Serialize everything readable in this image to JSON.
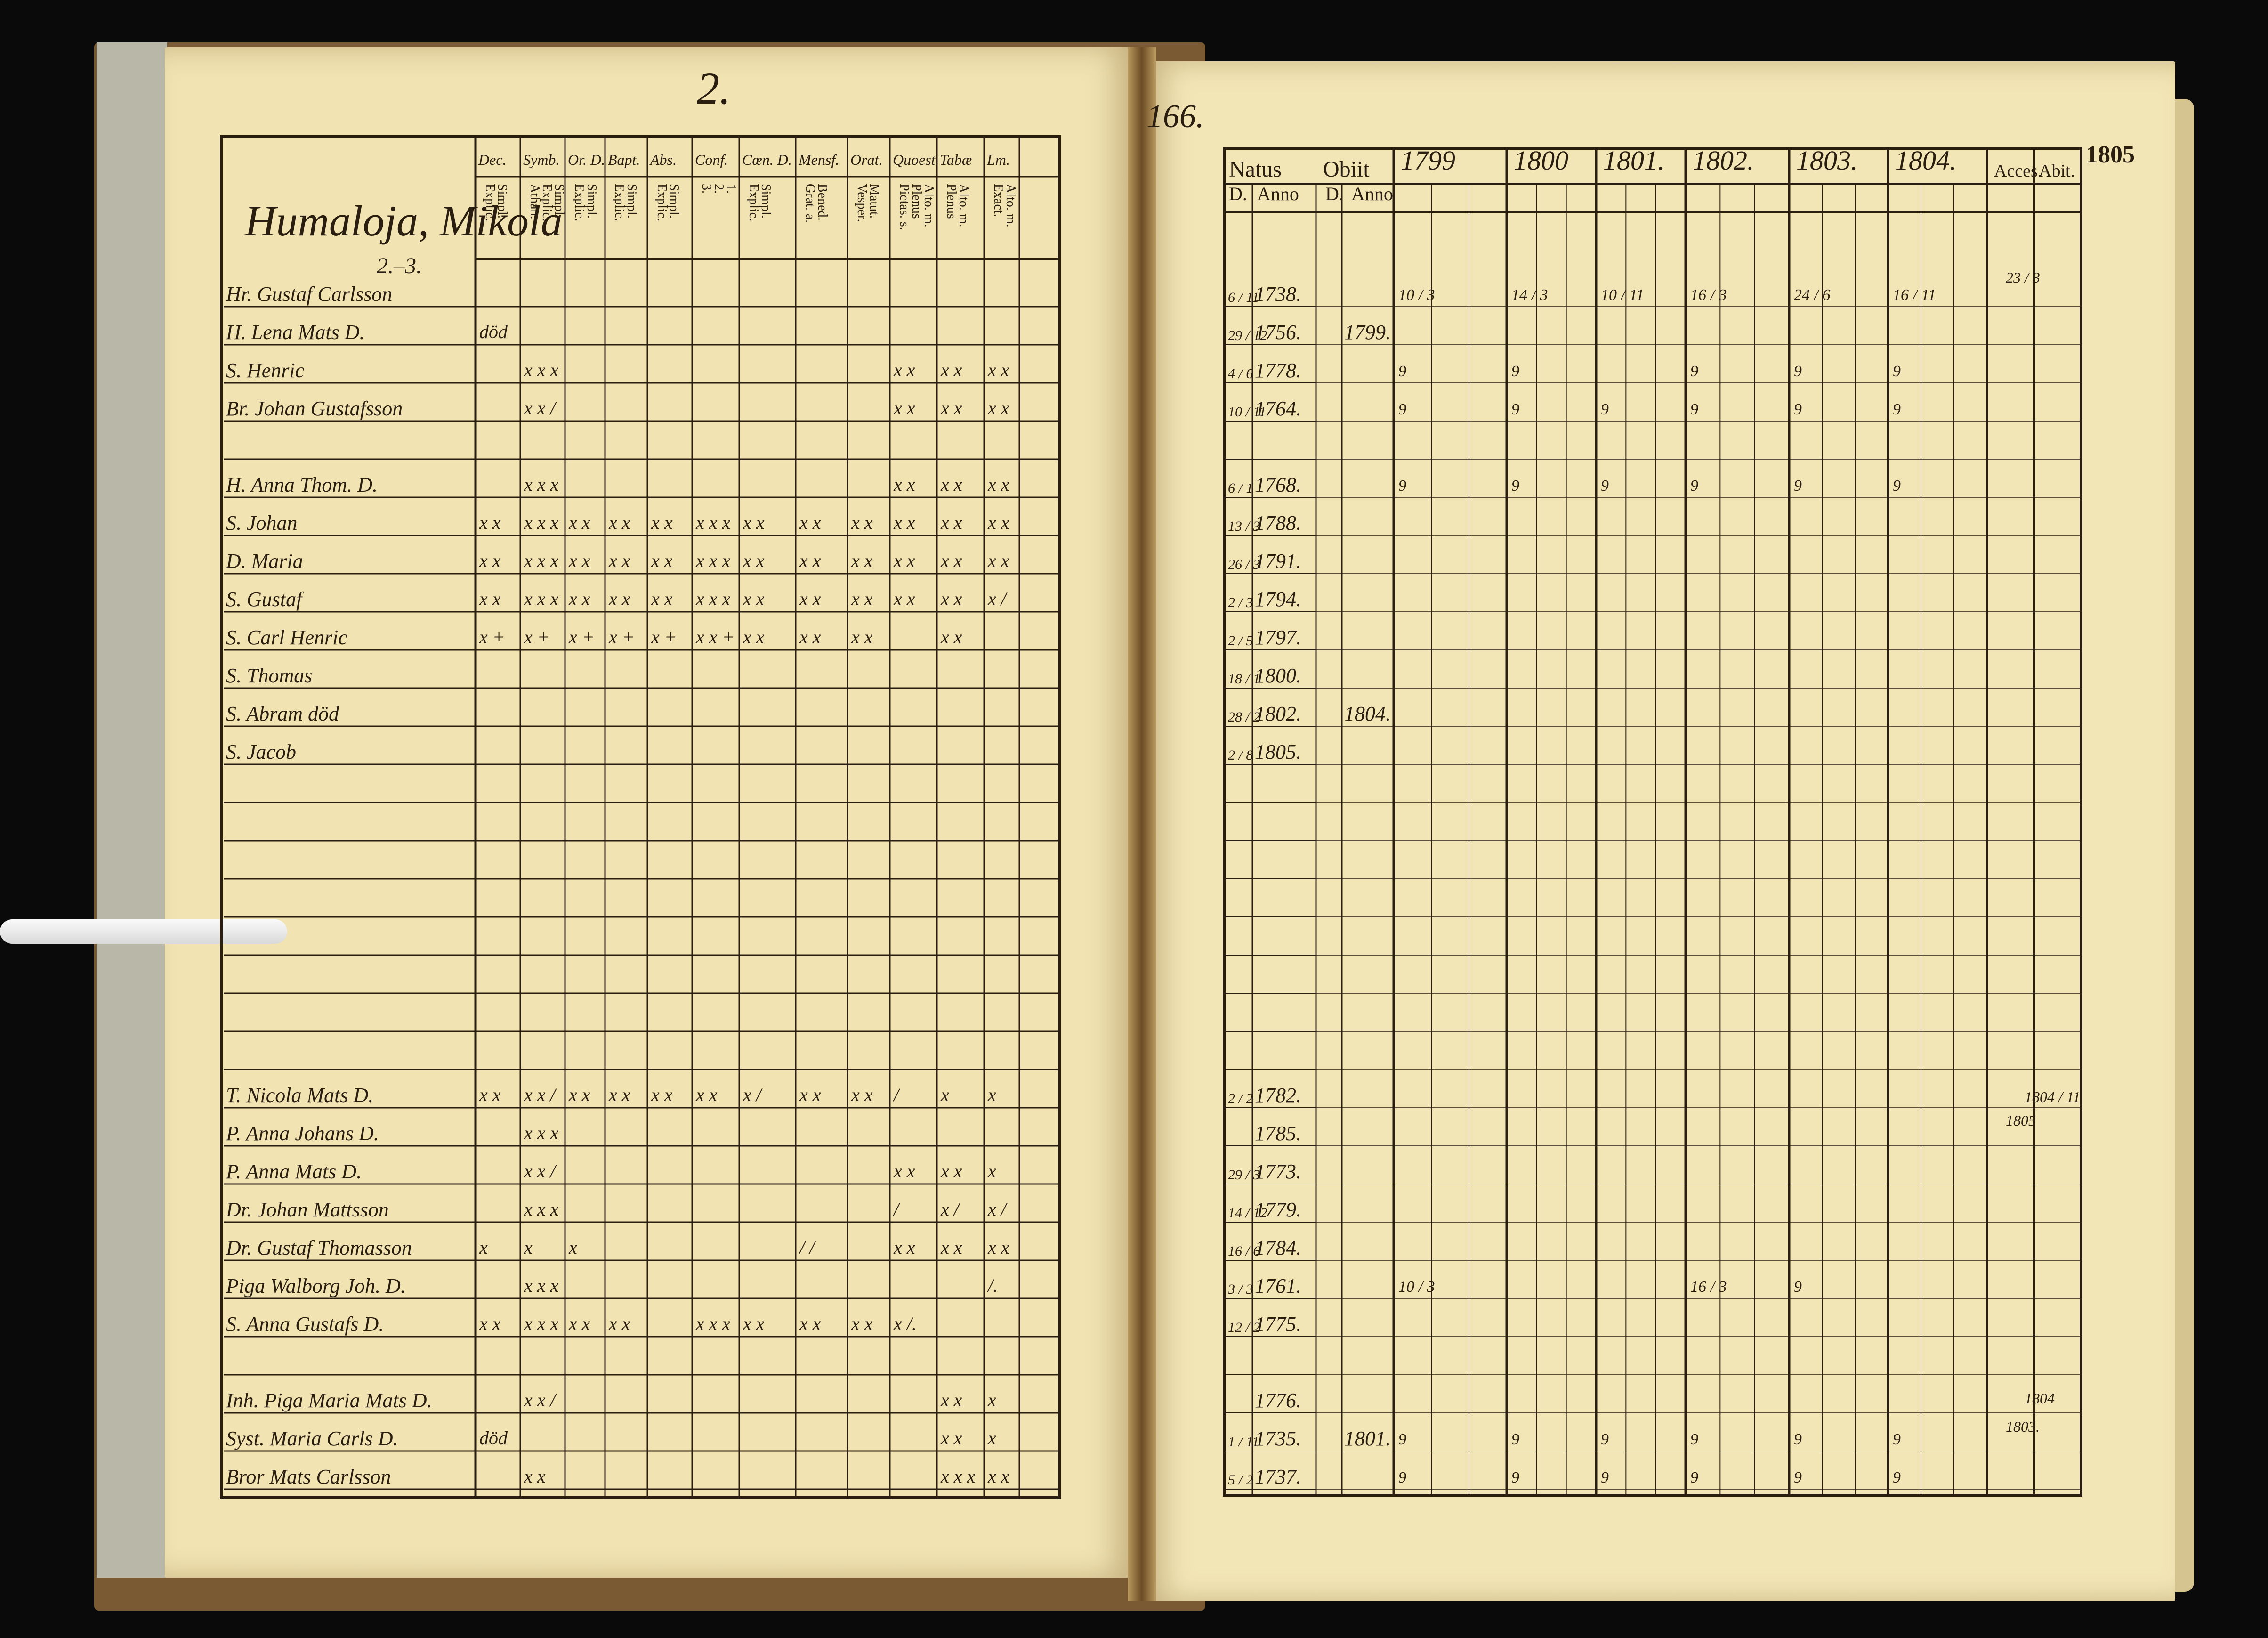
{
  "left_page": {
    "page_number": "2.",
    "household": "Humaloja, Mikola",
    "household_sub": "2.–3.",
    "columns": [
      {
        "head": "Dec.",
        "sub": [
          "Explic.",
          "Simpl."
        ]
      },
      {
        "head": "Symb.",
        "sub": [
          "Athan.",
          "Explic.",
          "Simpl."
        ]
      },
      {
        "head": "Or. D.",
        "sub": [
          "Explic.",
          "Simpl."
        ]
      },
      {
        "head": "Bapt.",
        "sub": [
          "Explic.",
          "Simpl."
        ]
      },
      {
        "head": "Abs.",
        "sub": [
          "Explic.",
          "Simpl."
        ]
      },
      {
        "head": "Conf.",
        "sub": [
          "3.",
          "2.",
          "1."
        ]
      },
      {
        "head": "Cœn. D.",
        "sub": [
          "Explic.",
          "Simpl."
        ]
      },
      {
        "head": "Mensf.",
        "sub": [
          "Grat. a.",
          "Bened."
        ]
      },
      {
        "head": "Orat.",
        "sub": [
          "Vesper.",
          "Matut."
        ]
      },
      {
        "head": "Quoest.",
        "sub": [
          "Pictas. s.",
          "Plenus",
          "Alto. m."
        ]
      },
      {
        "head": "Tabæ",
        "sub": [
          "Plenus",
          "Alto. m."
        ]
      },
      {
        "head": "Lm.",
        "sub": [
          "Exact.",
          "Alto. m."
        ]
      }
    ],
    "rows": [
      {
        "name": "Hr. Gustaf Carlsson",
        "marks": [
          "",
          "",
          "",
          "",
          "",
          "",
          "",
          "",
          "",
          "",
          "",
          ""
        ]
      },
      {
        "name": "H. Lena Mats D.",
        "marks": [
          "död",
          "",
          "",
          "",
          "",
          "",
          "",
          "",
          "",
          "",
          "",
          ""
        ]
      },
      {
        "name": "S. Henric",
        "marks": [
          "",
          "x x x",
          "",
          "",
          "",
          "",
          "",
          "",
          "",
          "x x",
          "x x",
          "x x"
        ]
      },
      {
        "name": "Br. Johan Gustafsson",
        "marks": [
          "",
          "x x /",
          "",
          "",
          "",
          "",
          "",
          "",
          "",
          "x x",
          "x x",
          "x x"
        ]
      },
      {
        "name": "",
        "marks": [
          "",
          "",
          "",
          "",
          "",
          "",
          "",
          "",
          "",
          "",
          "",
          ""
        ]
      },
      {
        "name": "H. Anna Thom. D.",
        "marks": [
          "",
          "x x x",
          "",
          "",
          "",
          "",
          "",
          "",
          "",
          "x x",
          "x x",
          "x x"
        ]
      },
      {
        "name": "S. Johan",
        "marks": [
          "x x",
          "x x x",
          "x x",
          "x x",
          "x x",
          "x x x",
          "x x",
          "x x",
          "x x",
          "x x",
          "x x",
          "x x"
        ]
      },
      {
        "name": "D. Maria",
        "marks": [
          "x x",
          "x x x",
          "x x",
          "x x",
          "x x",
          "x x x",
          "x x",
          "x x",
          "x x",
          "x x",
          "x x",
          "x x"
        ]
      },
      {
        "name": "S. Gustaf",
        "marks": [
          "x x",
          "x x x",
          "x x",
          "x x",
          "x x",
          "x x x",
          "x x",
          "x x",
          "x x",
          "x x",
          "x x",
          "x /"
        ]
      },
      {
        "name": "S. Carl Henric",
        "marks": [
          "x +",
          "x +",
          "x +",
          "x +",
          "x +",
          "x x +",
          "x x",
          "x x",
          "x x",
          "",
          "x x",
          ""
        ]
      },
      {
        "name": "S. Thomas",
        "marks": [
          "",
          "",
          "",
          "",
          "",
          "",
          "",
          "",
          "",
          "",
          "",
          ""
        ]
      },
      {
        "name": "S. Abram död",
        "marks": [
          "",
          "",
          "",
          "",
          "",
          "",
          "",
          "",
          "",
          "",
          "",
          ""
        ]
      },
      {
        "name": "S. Jacob",
        "marks": [
          "",
          "",
          "",
          "",
          "",
          "",
          "",
          "",
          "",
          "",
          "",
          ""
        ]
      },
      {
        "name": "",
        "marks": [
          "",
          "",
          "",
          "",
          "",
          "",
          "",
          "",
          "",
          "",
          "",
          ""
        ]
      },
      {
        "name": "",
        "marks": [
          "",
          "",
          "",
          "",
          "",
          "",
          "",
          "",
          "",
          "",
          "",
          ""
        ]
      },
      {
        "name": "",
        "marks": [
          "",
          "",
          "",
          "",
          "",
          "",
          "",
          "",
          "",
          "",
          "",
          ""
        ]
      },
      {
        "name": "",
        "marks": [
          "",
          "",
          "",
          "",
          "",
          "",
          "",
          "",
          "",
          "",
          "",
          ""
        ]
      },
      {
        "name": "",
        "marks": [
          "",
          "",
          "",
          "",
          "",
          "",
          "",
          "",
          "",
          "",
          "",
          ""
        ]
      },
      {
        "name": "",
        "marks": [
          "",
          "",
          "",
          "",
          "",
          "",
          "",
          "",
          "",
          "",
          "",
          ""
        ]
      },
      {
        "name": "",
        "marks": [
          "",
          "",
          "",
          "",
          "",
          "",
          "",
          "",
          "",
          "",
          "",
          ""
        ]
      },
      {
        "name": "",
        "marks": [
          "",
          "",
          "",
          "",
          "",
          "",
          "",
          "",
          "",
          "",
          "",
          ""
        ]
      },
      {
        "name": "T. Nicola Mats D.",
        "marks": [
          "x x",
          "x x /",
          "x x",
          "x x",
          "x x",
          "x x",
          "x /",
          "x x",
          "x x",
          "/",
          "x",
          "x"
        ]
      },
      {
        "name": "P. Anna Johans D.",
        "marks": [
          "",
          "x x x",
          "",
          "",
          "",
          "",
          "",
          "",
          "",
          "",
          "",
          ""
        ]
      },
      {
        "name": "P. Anna Mats D.",
        "marks": [
          "",
          "x x /",
          "",
          "",
          "",
          "",
          "",
          "",
          "",
          "x x",
          "x x",
          "x"
        ]
      },
      {
        "name": "Dr. Johan Mattsson",
        "marks": [
          "",
          "x x x",
          "",
          "",
          "",
          "",
          "",
          "",
          "",
          "/",
          "x /",
          "x /"
        ]
      },
      {
        "name": "Dr. Gustaf Thomasson",
        "marks": [
          "x",
          "x",
          "x",
          "",
          "",
          "",
          "",
          "/ /",
          "",
          "x x",
          "x x",
          "x x"
        ]
      },
      {
        "name": "Piga Walborg Joh. D.",
        "marks": [
          "",
          "x x x",
          "",
          "",
          "",
          "",
          "",
          "",
          "",
          "",
          "",
          "/."
        ]
      },
      {
        "name": "S. Anna Gustafs D.",
        "marks": [
          "x x",
          "x x x",
          "x x",
          "x x",
          "",
          "x x x",
          "x x",
          "x x",
          "x x",
          "x /.",
          "",
          ""
        ]
      },
      {
        "name": "",
        "marks": [
          "",
          "",
          "",
          "",
          "",
          "",
          "",
          "",
          "",
          "",
          "",
          ""
        ]
      },
      {
        "name": "Inh. Piga Maria Mats D.",
        "marks": [
          "",
          "x x /",
          "",
          "",
          "",
          "",
          "",
          "",
          "",
          "",
          "x x",
          "x"
        ]
      },
      {
        "name": "Syst. Maria Carls D.",
        "marks": [
          "död",
          "",
          "",
          "",
          "",
          "",
          "",
          "",
          "",
          "",
          "x x",
          "x"
        ]
      },
      {
        "name": "Bror Mats Carlsson",
        "marks": [
          "",
          "x x",
          "",
          "",
          "",
          "",
          "",
          "",
          "",
          "",
          "x x x",
          "x x"
        ]
      }
    ]
  },
  "right_page": {
    "folio": "166.",
    "natus": "Natus",
    "obiit": "Obiit",
    "sub_d": "D.",
    "sub_anno": "Anno",
    "years": [
      "1799",
      "1800",
      "1801.",
      "1802.",
      "1803.",
      "1804."
    ],
    "acces": "Acces.",
    "abit": "Abit.",
    "year_after": "1805",
    "rows": [
      {
        "born": "1738.",
        "died": "",
        "d1": "6 / 11",
        "marks": [
          "10 / 3",
          "14 / 3",
          "10 / 11",
          "16 / 3",
          "24 / 6",
          "16 / 11"
        ]
      },
      {
        "born": "1756.",
        "died": "1799.",
        "d1": "29 / 12",
        "marks": [
          "",
          "",
          "",
          "",
          "",
          ""
        ]
      },
      {
        "born": "1778.",
        "died": "",
        "d1": "4 / 6",
        "marks": [
          "9",
          "9",
          "",
          "9",
          "9",
          "9"
        ]
      },
      {
        "born": "1764.",
        "died": "",
        "d1": "10 / 11",
        "marks": [
          "9",
          "9",
          "9",
          "9",
          "9",
          "9"
        ]
      },
      {
        "born": "",
        "died": "",
        "d1": "",
        "marks": [
          "",
          "",
          "",
          "",
          "",
          ""
        ]
      },
      {
        "born": "1768.",
        "died": "",
        "d1": "6 / 1",
        "marks": [
          "9",
          "9",
          "9",
          "9",
          "9",
          "9"
        ]
      },
      {
        "born": "1788.",
        "died": "",
        "d1": "13 / 3",
        "marks": [
          "",
          "",
          "",
          "",
          "",
          ""
        ]
      },
      {
        "born": "1791.",
        "died": "",
        "d1": "26 / 3",
        "marks": [
          "",
          "",
          "",
          "",
          "",
          ""
        ]
      },
      {
        "born": "1794.",
        "died": "",
        "d1": "2 / 3",
        "marks": [
          "",
          "",
          "",
          "",
          "",
          ""
        ]
      },
      {
        "born": "1797.",
        "died": "",
        "d1": "2 / 5",
        "marks": [
          "",
          "",
          "",
          "",
          "",
          ""
        ]
      },
      {
        "born": "1800.",
        "died": "",
        "d1": "18 / 1",
        "marks": [
          "",
          "",
          "",
          "",
          "",
          ""
        ]
      },
      {
        "born": "1802.",
        "died": "1804.",
        "d1": "28 / 2",
        "marks": [
          "",
          "",
          "",
          "",
          "",
          ""
        ]
      },
      {
        "born": "1805.",
        "died": "",
        "d1": "2 / 8",
        "marks": [
          "",
          "",
          "",
          "",
          "",
          ""
        ]
      },
      {
        "born": "",
        "died": "",
        "d1": "",
        "marks": [
          "",
          "",
          "",
          "",
          "",
          ""
        ]
      },
      {
        "born": "",
        "died": "",
        "d1": "",
        "marks": [
          "",
          "",
          "",
          "",
          "",
          ""
        ]
      },
      {
        "born": "",
        "died": "",
        "d1": "",
        "marks": [
          "",
          "",
          "",
          "",
          "",
          ""
        ]
      },
      {
        "born": "",
        "died": "",
        "d1": "",
        "marks": [
          "",
          "",
          "",
          "",
          "",
          ""
        ]
      },
      {
        "born": "",
        "died": "",
        "d1": "",
        "marks": [
          "",
          "",
          "",
          "",
          "",
          ""
        ]
      },
      {
        "born": "",
        "died": "",
        "d1": "",
        "marks": [
          "",
          "",
          "",
          "",
          "",
          ""
        ]
      },
      {
        "born": "",
        "died": "",
        "d1": "",
        "marks": [
          "",
          "",
          "",
          "",
          "",
          ""
        ]
      },
      {
        "born": "",
        "died": "",
        "d1": "",
        "marks": [
          "",
          "",
          "",
          "",
          "",
          ""
        ]
      },
      {
        "born": "1782.",
        "died": "",
        "d1": "2 / 2",
        "marks": [
          "",
          "",
          "",
          "",
          "",
          ""
        ]
      },
      {
        "born": "1785.",
        "died": "",
        "d1": "",
        "marks": [
          "",
          "",
          "",
          "",
          "",
          ""
        ]
      },
      {
        "born": "1773.",
        "died": "",
        "d1": "29 / 3",
        "marks": [
          "",
          "",
          "",
          "",
          "",
          ""
        ]
      },
      {
        "born": "1779.",
        "died": "",
        "d1": "14 / 12",
        "marks": [
          "",
          "",
          "",
          "",
          "",
          ""
        ]
      },
      {
        "born": "1784.",
        "died": "",
        "d1": "16 / 6",
        "marks": [
          "",
          "",
          "",
          "",
          "",
          ""
        ]
      },
      {
        "born": "1761.",
        "died": "",
        "d1": "3 / 3",
        "marks": [
          "10 / 3",
          "",
          "",
          "16 / 3",
          "9",
          ""
        ]
      },
      {
        "born": "1775.",
        "died": "",
        "d1": "12 / 2",
        "marks": [
          "",
          "",
          "",
          "",
          "",
          ""
        ]
      },
      {
        "born": "",
        "died": "",
        "d1": "",
        "marks": [
          "",
          "",
          "",
          "",
          "",
          ""
        ]
      },
      {
        "born": "1776.",
        "died": "",
        "d1": "",
        "marks": [
          "",
          "",
          "",
          "",
          "",
          ""
        ]
      },
      {
        "born": "1735.",
        "died": "1801.",
        "d1": "1 / 11",
        "marks": [
          "9",
          "9",
          "9",
          "9",
          "9",
          "9"
        ]
      },
      {
        "born": "1737.",
        "died": "",
        "d1": "5 / 2",
        "marks": [
          "9",
          "9",
          "9",
          "9",
          "9",
          "9"
        ]
      }
    ],
    "margin_notes": [
      "23 / 3",
      "1804 / 11",
      "1805",
      "1804",
      "1803."
    ]
  }
}
